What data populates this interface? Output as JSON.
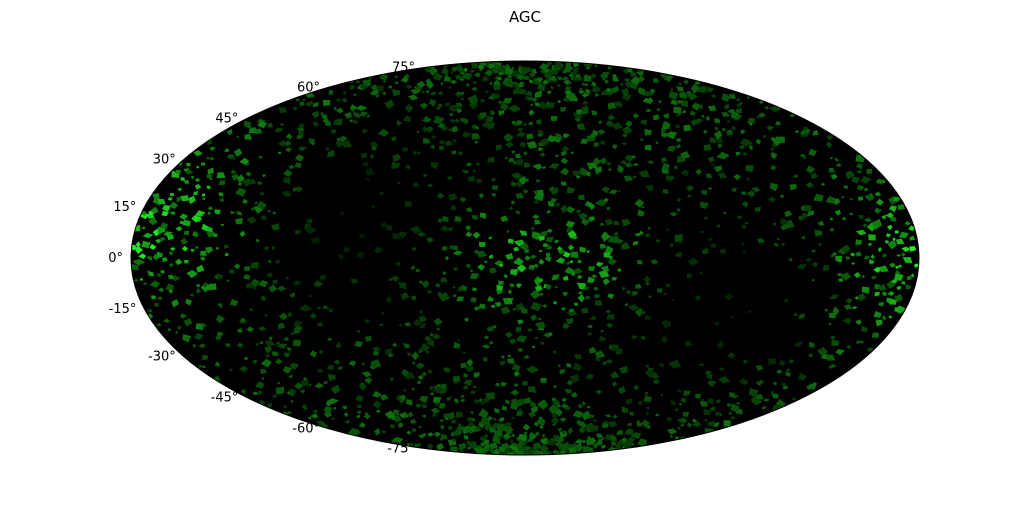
{
  "chart_data": {
    "type": "heatmap",
    "projection": "hammer-aitoff",
    "title": "AGC",
    "xlabel": "",
    "ylabel": "",
    "colormap": {
      "low": "#000000",
      "high": "#22ee22"
    },
    "grid": false,
    "legend": "none",
    "lat_ticks": [
      {
        "value": 75,
        "label": "75°"
      },
      {
        "value": 60,
        "label": "60°"
      },
      {
        "value": 45,
        "label": "45°"
      },
      {
        "value": 30,
        "label": "30°"
      },
      {
        "value": 15,
        "label": "15°"
      },
      {
        "value": 0,
        "label": "0°"
      },
      {
        "value": -15,
        "label": "-15°"
      },
      {
        "value": -30,
        "label": "-30°"
      },
      {
        "value": -45,
        "label": "-45°"
      },
      {
        "value": -60,
        "label": "-60°"
      },
      {
        "value": -75,
        "label": "-75°"
      }
    ],
    "ylim": [
      -90,
      90
    ],
    "xlim": [
      -180,
      180
    ],
    "notable_features": [
      {
        "name": "equatorial band",
        "lon": 0,
        "lat": 0,
        "intensity": 0.85
      },
      {
        "name": "left edge cluster",
        "lon": -175,
        "lat": 10,
        "intensity": 0.9
      },
      {
        "name": "right edge cluster",
        "lon": 175,
        "lat": 0,
        "intensity": 0.85
      },
      {
        "name": "void upper-left",
        "lon": -70,
        "lat": 10,
        "intensity": 0.05
      },
      {
        "name": "void lower-right",
        "lon": 90,
        "lat": -20,
        "intensity": 0.05
      }
    ]
  }
}
